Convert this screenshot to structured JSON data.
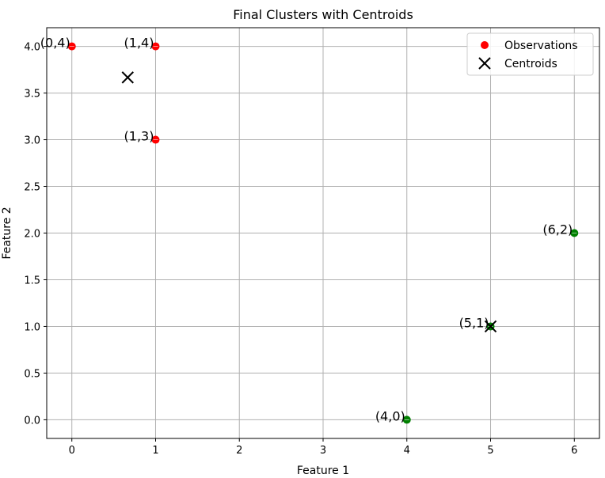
{
  "chart_data": {
    "type": "scatter",
    "title": "Final Clusters with Centroids",
    "xlabel": "Feature 1",
    "ylabel": "Feature 2",
    "xlim": [
      -0.3,
      6.3
    ],
    "ylim": [
      -0.2,
      4.2
    ],
    "x_ticks": [
      0,
      1,
      2,
      3,
      4,
      5,
      6
    ],
    "x_tick_labels": [
      "0",
      "1",
      "2",
      "3",
      "4",
      "5",
      "6"
    ],
    "y_ticks": [
      0.0,
      0.5,
      1.0,
      1.5,
      2.0,
      2.5,
      3.0,
      3.5,
      4.0
    ],
    "y_tick_labels": [
      "0.0",
      "0.5",
      "1.0",
      "1.5",
      "2.0",
      "2.5",
      "3.0",
      "3.5",
      "4.0"
    ],
    "grid": true,
    "legend_position": "top-right",
    "series": [
      {
        "name": "Observations",
        "marker": "circle",
        "points": [
          {
            "x": 0,
            "y": 4,
            "label": "(0,4)",
            "color": "#ff0000"
          },
          {
            "x": 1,
            "y": 4,
            "label": "(1,4)",
            "color": "#ff0000"
          },
          {
            "x": 1,
            "y": 3,
            "label": "(1,3)",
            "color": "#ff0000"
          },
          {
            "x": 6,
            "y": 2,
            "label": "(6,2)",
            "color": "#008000"
          },
          {
            "x": 5,
            "y": 1,
            "label": "(5,1)",
            "color": "#008000"
          },
          {
            "x": 4,
            "y": 0,
            "label": "(4,0)",
            "color": "#008000"
          }
        ]
      },
      {
        "name": "Centroids",
        "marker": "x",
        "color": "#000000",
        "points": [
          {
            "x": 0.667,
            "y": 3.667
          },
          {
            "x": 5,
            "y": 1
          }
        ]
      }
    ]
  }
}
